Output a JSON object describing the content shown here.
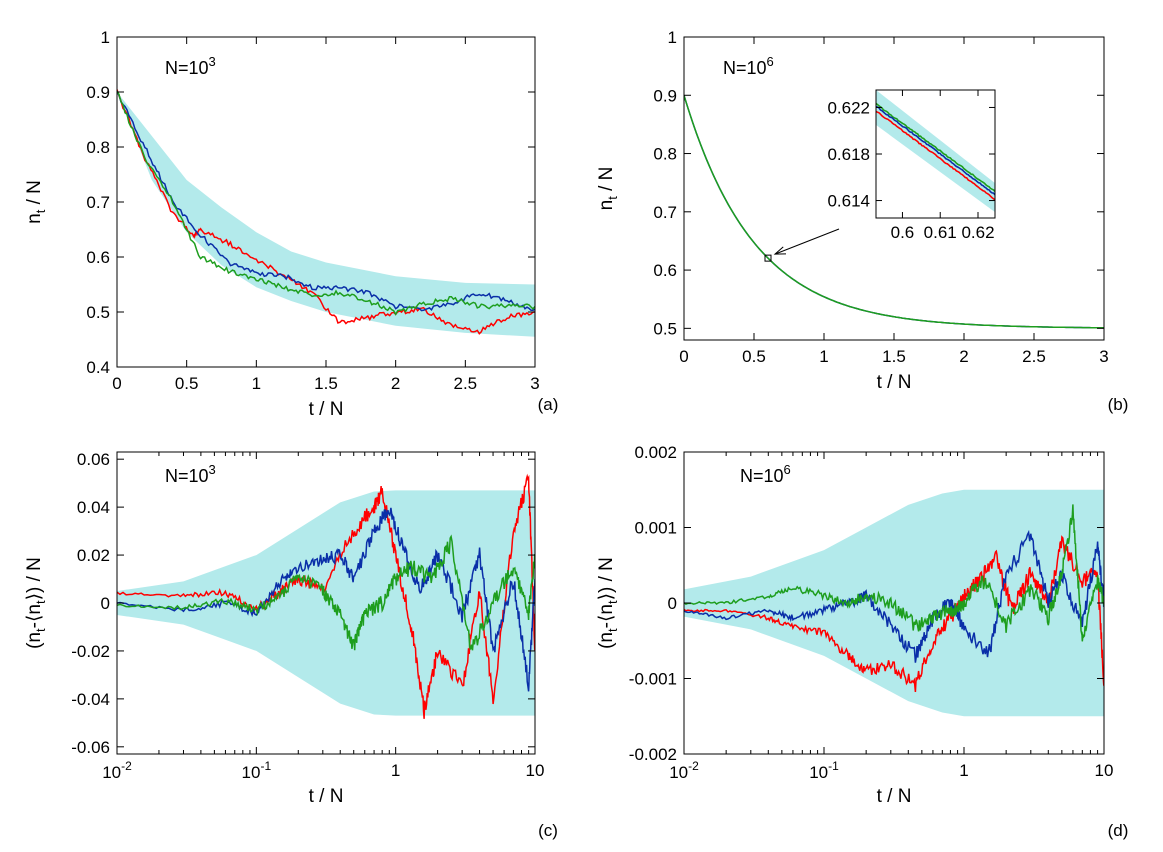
{
  "colors": {
    "band": "#b3eaeb",
    "red": "#ff0000",
    "blue": "#0a2fa8",
    "green": "#1e9e1e",
    "axis": "#000000"
  },
  "chart_data": [
    {
      "panel_label": "(a)",
      "type": "line",
      "annotation": {
        "base": "N=10",
        "exp": "3"
      },
      "xlabel": "t / N",
      "ylabel_parts": [
        "n",
        "t",
        " / N"
      ],
      "xscale": "linear",
      "xlim": [
        0,
        3
      ],
      "ylim": [
        0.4,
        1
      ],
      "xticks": [
        0,
        0.5,
        1,
        1.5,
        2,
        2.5,
        3
      ],
      "xtick_labels": [
        "0",
        "0.5",
        "1",
        "1.5",
        "2",
        "2.5",
        "3"
      ],
      "yticks": [
        0.4,
        0.5,
        0.6,
        0.7,
        0.8,
        0.9,
        1
      ],
      "ytick_labels": [
        "0.4",
        "0.5",
        "0.6",
        "0.7",
        "0.8",
        "0.9",
        "1"
      ],
      "band": {
        "x": [
          0,
          0.25,
          0.5,
          0.75,
          1,
          1.25,
          1.5,
          2,
          2.5,
          3
        ],
        "lower": [
          0.9,
          0.74,
          0.645,
          0.585,
          0.545,
          0.52,
          0.5,
          0.475,
          0.462,
          0.455
        ],
        "upper": [
          0.9,
          0.82,
          0.74,
          0.69,
          0.645,
          0.61,
          0.59,
          0.565,
          0.553,
          0.55
        ]
      },
      "series": [
        {
          "color": "red",
          "x": [
            0,
            0.2,
            0.4,
            0.55,
            0.6,
            0.8,
            1.0,
            1.2,
            1.4,
            1.6,
            1.8,
            2.0,
            2.2,
            2.4,
            2.6,
            2.8,
            3.0
          ],
          "y": [
            0.9,
            0.78,
            0.68,
            0.64,
            0.65,
            0.625,
            0.595,
            0.565,
            0.535,
            0.48,
            0.49,
            0.5,
            0.505,
            0.475,
            0.465,
            0.49,
            0.5
          ]
        },
        {
          "color": "blue",
          "x": [
            0,
            0.2,
            0.4,
            0.6,
            0.8,
            1.0,
            1.2,
            1.4,
            1.6,
            1.8,
            2.0,
            2.2,
            2.4,
            2.6,
            2.8,
            3.0
          ],
          "y": [
            0.9,
            0.8,
            0.7,
            0.64,
            0.59,
            0.57,
            0.565,
            0.545,
            0.545,
            0.535,
            0.51,
            0.505,
            0.515,
            0.535,
            0.52,
            0.505
          ]
        },
        {
          "color": "green",
          "x": [
            0,
            0.2,
            0.4,
            0.6,
            0.8,
            1.0,
            1.2,
            1.4,
            1.6,
            1.8,
            2.0,
            2.2,
            2.4,
            2.6,
            2.8,
            3.0
          ],
          "y": [
            0.9,
            0.78,
            0.7,
            0.6,
            0.575,
            0.56,
            0.545,
            0.53,
            0.535,
            0.52,
            0.5,
            0.515,
            0.525,
            0.51,
            0.51,
            0.51
          ]
        }
      ]
    },
    {
      "panel_label": "(b)",
      "type": "line",
      "annotation": {
        "base": "N=10",
        "exp": "6"
      },
      "xlabel": "t / N",
      "ylabel_parts": [
        "n",
        "t",
        " / N"
      ],
      "xscale": "linear",
      "xlim": [
        0,
        3
      ],
      "ylim": [
        0.48,
        1
      ],
      "xticks": [
        0,
        0.5,
        1,
        1.5,
        2,
        2.5,
        3
      ],
      "xtick_labels": [
        "0",
        "0.5",
        "1",
        "1.5",
        "2",
        "2.5",
        "3"
      ],
      "yticks": [
        0.5,
        0.6,
        0.7,
        0.8,
        0.9,
        1
      ],
      "ytick_labels": [
        "0.5",
        "0.6",
        "0.7",
        "0.8",
        "0.9",
        "1"
      ],
      "curve": {
        "model": "0.5 + 0.4*exp(-2*t)",
        "color": "green"
      },
      "marker": {
        "x": 0.6,
        "y": 0.6205
      },
      "inset": {
        "xlim": [
          0.593,
          0.6245
        ],
        "ylim": [
          0.6125,
          0.6235
        ],
        "xticks": [
          0.6,
          0.61,
          0.62
        ],
        "xtick_labels": [
          "0.6",
          "0.61",
          "0.62"
        ],
        "yticks": [
          0.614,
          0.618,
          0.622
        ],
        "ytick_labels": [
          "0.614",
          "0.618",
          "0.622"
        ],
        "band": {
          "x": [
            0.593,
            0.6245
          ],
          "lower": [
            0.6205,
            0.613
          ],
          "upper": [
            0.6235,
            0.6155
          ]
        },
        "series": [
          {
            "color": "green",
            "x": [
              0.593,
              0.6245
            ],
            "y": [
              0.6223,
              0.6148
            ]
          },
          {
            "color": "blue",
            "x": [
              0.593,
              0.6245
            ],
            "y": [
              0.6221,
              0.6145
            ]
          },
          {
            "color": "red",
            "x": [
              0.593,
              0.6245
            ],
            "y": [
              0.6217,
              0.6141
            ]
          }
        ]
      }
    },
    {
      "panel_label": "(c)",
      "type": "line",
      "annotation": {
        "base": "N=10",
        "exp": "3"
      },
      "xlabel": "t / N",
      "ylabel_parts": [
        "(n",
        "t",
        "-⟨n",
        "t",
        "⟩) / N"
      ],
      "xscale": "log",
      "xlim": [
        0.01,
        10
      ],
      "ylim": [
        -0.063,
        0.063
      ],
      "xticks": [
        0.01,
        0.1,
        1,
        10
      ],
      "xtick_labels": [
        {
          "base": "10",
          "exp": "-2"
        },
        {
          "base": "10",
          "exp": "-1"
        },
        "1",
        "10"
      ],
      "yticks": [
        -0.06,
        -0.04,
        -0.02,
        0,
        0.02,
        0.04,
        0.06
      ],
      "ytick_labels": [
        "-0.06",
        "-0.04",
        "-0.02",
        "0",
        "0.02",
        "0.04",
        "0.06"
      ],
      "band_half_width": {
        "x": [
          0.01,
          0.03,
          0.1,
          0.2,
          0.4,
          0.7,
          1,
          10
        ],
        "w": [
          0.005,
          0.009,
          0.02,
          0.031,
          0.042,
          0.0465,
          0.047,
          0.047
        ]
      },
      "series": [
        {
          "color": "red",
          "x": [
            0.01,
            0.03,
            0.06,
            0.1,
            0.15,
            0.2,
            0.3,
            0.5,
            0.7,
            0.8,
            1.0,
            1.3,
            1.6,
            2,
            3,
            4,
            5,
            7,
            9,
            10
          ],
          "y": [
            0.004,
            0.003,
            0.0045,
            -0.003,
            0.005,
            0.01,
            0.006,
            0.03,
            0.04,
            0.047,
            0.02,
            -0.01,
            -0.045,
            -0.02,
            -0.035,
            0.005,
            -0.04,
            0.03,
            0.052,
            -0.02
          ]
        },
        {
          "color": "blue",
          "x": [
            0.01,
            0.03,
            0.06,
            0.1,
            0.15,
            0.2,
            0.3,
            0.4,
            0.5,
            0.7,
            0.9,
            1.1,
            1.5,
            2,
            3,
            4,
            5,
            7,
            9,
            10
          ],
          "y": [
            0.0,
            -0.003,
            0.0,
            -0.004,
            0.009,
            0.015,
            0.018,
            0.02,
            0.01,
            0.03,
            0.04,
            0.025,
            0.005,
            0.02,
            -0.005,
            0.02,
            -0.02,
            0.01,
            -0.035,
            0.01
          ]
        },
        {
          "color": "green",
          "x": [
            0.01,
            0.03,
            0.06,
            0.1,
            0.15,
            0.2,
            0.3,
            0.4,
            0.5,
            0.6,
            0.8,
            1.0,
            1.3,
            1.8,
            2.5,
            3.5,
            5,
            7,
            9,
            10
          ],
          "y": [
            -0.001,
            -0.002,
            0.001,
            -0.003,
            0.003,
            0.012,
            0.005,
            -0.005,
            -0.018,
            -0.005,
            0.0,
            0.01,
            0.015,
            0.01,
            0.025,
            -0.02,
            0.0,
            0.015,
            -0.005,
            0.02
          ]
        }
      ]
    },
    {
      "panel_label": "(d)",
      "type": "line",
      "annotation": {
        "base": "N=10",
        "exp": "6"
      },
      "xlabel": "t / N",
      "ylabel_parts": [
        "(n",
        "t",
        "-⟨n",
        "t",
        "⟩) / N"
      ],
      "xscale": "log",
      "xlim": [
        0.01,
        10
      ],
      "ylim": [
        -0.002,
        0.002
      ],
      "xticks": [
        0.01,
        0.1,
        1,
        10
      ],
      "xtick_labels": [
        {
          "base": "10",
          "exp": "-2"
        },
        {
          "base": "10",
          "exp": "-1"
        },
        "1",
        "10"
      ],
      "yticks": [
        -0.002,
        -0.001,
        0,
        0.001,
        0.002
      ],
      "ytick_labels": [
        "-0.002",
        "-0.001",
        "0",
        "0.001",
        "0.002"
      ],
      "band_half_width": {
        "x": [
          0.01,
          0.03,
          0.1,
          0.2,
          0.4,
          0.7,
          1,
          10
        ],
        "w": [
          0.00018,
          0.00035,
          0.0007,
          0.001,
          0.0013,
          0.00145,
          0.0015,
          0.0015
        ]
      },
      "series": [
        {
          "color": "red",
          "x": [
            0.01,
            0.02,
            0.04,
            0.06,
            0.1,
            0.15,
            0.2,
            0.3,
            0.45,
            0.6,
            0.8,
            1.0,
            1.3,
            1.7,
            2.2,
            3,
            4,
            5,
            7,
            9,
            10
          ],
          "y": [
            -0.0001,
            -0.0001,
            -0.0002,
            -0.0003,
            -0.0004,
            -0.0007,
            -0.0009,
            -0.0008,
            -0.0011,
            -0.0005,
            -0.0002,
            0.0001,
            0.0003,
            0.0006,
            -0.0001,
            0.0004,
            0.0,
            0.0008,
            0.0003,
            0.0004,
            -0.0011
          ]
        },
        {
          "color": "blue",
          "x": [
            0.01,
            0.02,
            0.04,
            0.06,
            0.1,
            0.15,
            0.2,
            0.3,
            0.45,
            0.6,
            0.8,
            1.0,
            1.5,
            2,
            3,
            4,
            5,
            7,
            9,
            10
          ],
          "y": [
            -0.0001,
            -0.0002,
            -0.0001,
            -0.0002,
            -0.0001,
            0.0,
            0.0001,
            -0.0003,
            -0.0007,
            -0.0002,
            0.0,
            -0.0003,
            -0.0007,
            0.0004,
            0.0009,
            0.0,
            0.0004,
            -0.0003,
            0.0008,
            0.0
          ]
        },
        {
          "color": "green",
          "x": [
            0.01,
            0.02,
            0.04,
            0.06,
            0.1,
            0.15,
            0.2,
            0.3,
            0.45,
            0.6,
            0.8,
            1.0,
            1.4,
            2,
            3,
            4,
            5,
            6,
            7,
            9,
            10
          ],
          "y": [
            0.0,
            0.0,
            0.0001,
            0.0002,
            0.0001,
            0.0,
            0.0001,
            0.0,
            -0.0003,
            -0.0002,
            -0.0001,
            0.0,
            0.0003,
            -0.0003,
            0.0002,
            -0.0002,
            0.0004,
            0.0012,
            -0.0005,
            0.0003,
            0.0
          ]
        }
      ]
    }
  ]
}
